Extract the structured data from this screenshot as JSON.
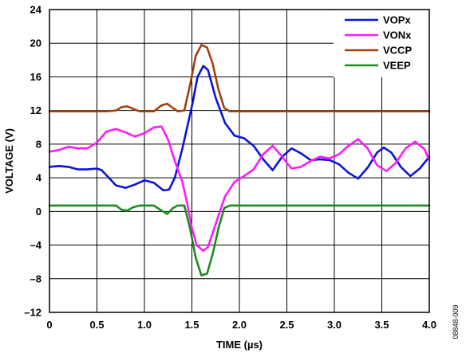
{
  "chart_data": {
    "type": "line",
    "xlabel": "TIME (µs)",
    "ylabel": "VOLTAGE (V)",
    "xlim": [
      0,
      4.0
    ],
    "ylim": [
      -12,
      24
    ],
    "xticks": [
      "0",
      "0.5",
      "1.0",
      "1.5",
      "2.0",
      "2.5",
      "3.0",
      "3.5",
      "4.0"
    ],
    "xtick_values": [
      0,
      0.5,
      1.0,
      1.5,
      2.0,
      2.5,
      3.0,
      3.5,
      4.0
    ],
    "yticks": [
      "–12",
      "–8",
      "–4",
      "0",
      "4",
      "8",
      "12",
      "16",
      "20",
      "24"
    ],
    "ytick_values": [
      -12,
      -8,
      -4,
      0,
      4,
      8,
      12,
      16,
      20,
      24
    ],
    "grid": true,
    "legend_position": "top-right",
    "series": [
      {
        "name": "VOPx",
        "color": "#0a14d6",
        "points": [
          [
            0,
            5.3
          ],
          [
            0.1,
            5.4
          ],
          [
            0.2,
            5.3
          ],
          [
            0.3,
            5.0
          ],
          [
            0.4,
            5.0
          ],
          [
            0.5,
            5.1
          ],
          [
            0.55,
            4.9
          ],
          [
            0.6,
            4.3
          ],
          [
            0.7,
            3.1
          ],
          [
            0.8,
            2.8
          ],
          [
            0.9,
            3.2
          ],
          [
            1.0,
            3.7
          ],
          [
            1.1,
            3.4
          ],
          [
            1.2,
            2.5
          ],
          [
            1.26,
            2.6
          ],
          [
            1.32,
            4.0
          ],
          [
            1.4,
            7.5
          ],
          [
            1.5,
            12.5
          ],
          [
            1.56,
            16.0
          ],
          [
            1.62,
            17.3
          ],
          [
            1.67,
            16.8
          ],
          [
            1.75,
            13.5
          ],
          [
            1.85,
            10.5
          ],
          [
            1.95,
            9.0
          ],
          [
            2.05,
            8.7
          ],
          [
            2.15,
            7.8
          ],
          [
            2.25,
            6.2
          ],
          [
            2.35,
            4.9
          ],
          [
            2.45,
            6.5
          ],
          [
            2.55,
            7.5
          ],
          [
            2.65,
            6.9
          ],
          [
            2.75,
            6.1
          ],
          [
            2.85,
            6.2
          ],
          [
            2.95,
            6.1
          ],
          [
            3.05,
            5.6
          ],
          [
            3.15,
            4.6
          ],
          [
            3.25,
            3.9
          ],
          [
            3.35,
            5.2
          ],
          [
            3.45,
            7.0
          ],
          [
            3.52,
            7.6
          ],
          [
            3.6,
            7.0
          ],
          [
            3.7,
            5.3
          ],
          [
            3.8,
            4.2
          ],
          [
            3.9,
            5.1
          ],
          [
            4.0,
            6.5
          ]
        ]
      },
      {
        "name": "VONx",
        "color": "#ff19ff",
        "points": [
          [
            0,
            7.1
          ],
          [
            0.1,
            7.3
          ],
          [
            0.2,
            7.7
          ],
          [
            0.3,
            7.5
          ],
          [
            0.4,
            7.5
          ],
          [
            0.5,
            8.2
          ],
          [
            0.6,
            9.5
          ],
          [
            0.7,
            9.8
          ],
          [
            0.8,
            9.4
          ],
          [
            0.9,
            8.9
          ],
          [
            1.0,
            9.3
          ],
          [
            1.1,
            10.0
          ],
          [
            1.18,
            10.1
          ],
          [
            1.25,
            8.5
          ],
          [
            1.32,
            6.0
          ],
          [
            1.4,
            3.5
          ],
          [
            1.45,
            1.0
          ],
          [
            1.5,
            -2.0
          ],
          [
            1.55,
            -4.0
          ],
          [
            1.62,
            -4.7
          ],
          [
            1.67,
            -4.2
          ],
          [
            1.75,
            -1.5
          ],
          [
            1.85,
            1.8
          ],
          [
            1.95,
            3.5
          ],
          [
            2.05,
            4.2
          ],
          [
            2.15,
            5.0
          ],
          [
            2.25,
            6.8
          ],
          [
            2.35,
            7.8
          ],
          [
            2.45,
            6.5
          ],
          [
            2.55,
            5.1
          ],
          [
            2.65,
            5.3
          ],
          [
            2.75,
            6.0
          ],
          [
            2.85,
            6.5
          ],
          [
            2.95,
            6.3
          ],
          [
            3.05,
            6.8
          ],
          [
            3.15,
            7.8
          ],
          [
            3.25,
            8.6
          ],
          [
            3.35,
            7.5
          ],
          [
            3.45,
            5.5
          ],
          [
            3.55,
            4.8
          ],
          [
            3.65,
            5.8
          ],
          [
            3.75,
            7.5
          ],
          [
            3.85,
            8.3
          ],
          [
            3.95,
            7.4
          ],
          [
            4.0,
            6.1
          ]
        ]
      },
      {
        "name": "VCCP",
        "color": "#a0410f",
        "points": [
          [
            0,
            11.9
          ],
          [
            0.2,
            11.9
          ],
          [
            0.4,
            11.9
          ],
          [
            0.6,
            11.9
          ],
          [
            0.7,
            12.0
          ],
          [
            0.76,
            12.4
          ],
          [
            0.82,
            12.5
          ],
          [
            0.88,
            12.2
          ],
          [
            0.95,
            11.9
          ],
          [
            1.1,
            11.9
          ],
          [
            1.18,
            12.6
          ],
          [
            1.24,
            12.8
          ],
          [
            1.3,
            12.3
          ],
          [
            1.35,
            11.9
          ],
          [
            1.42,
            12.0
          ],
          [
            1.48,
            15.0
          ],
          [
            1.54,
            18.5
          ],
          [
            1.6,
            19.8
          ],
          [
            1.66,
            19.5
          ],
          [
            1.72,
            17.5
          ],
          [
            1.78,
            14.5
          ],
          [
            1.84,
            12.3
          ],
          [
            1.9,
            11.9
          ],
          [
            2.0,
            11.9
          ],
          [
            2.5,
            11.9
          ],
          [
            3.0,
            11.9
          ],
          [
            3.5,
            11.9
          ],
          [
            4.0,
            11.9
          ]
        ]
      },
      {
        "name": "VEEP",
        "color": "#1f8a1f",
        "points": [
          [
            0,
            0.7
          ],
          [
            0.2,
            0.7
          ],
          [
            0.4,
            0.7
          ],
          [
            0.6,
            0.7
          ],
          [
            0.7,
            0.7
          ],
          [
            0.76,
            0.2
          ],
          [
            0.82,
            0.1
          ],
          [
            0.88,
            0.5
          ],
          [
            0.95,
            0.7
          ],
          [
            1.1,
            0.7
          ],
          [
            1.18,
            0.1
          ],
          [
            1.24,
            -0.3
          ],
          [
            1.3,
            0.4
          ],
          [
            1.35,
            0.7
          ],
          [
            1.42,
            0.7
          ],
          [
            1.48,
            -2.0
          ],
          [
            1.54,
            -5.5
          ],
          [
            1.6,
            -7.6
          ],
          [
            1.66,
            -7.4
          ],
          [
            1.72,
            -5.0
          ],
          [
            1.78,
            -2.0
          ],
          [
            1.84,
            0.4
          ],
          [
            1.9,
            0.7
          ],
          [
            2.0,
            0.7
          ],
          [
            2.5,
            0.7
          ],
          [
            3.0,
            0.7
          ],
          [
            3.5,
            0.7
          ],
          [
            4.0,
            0.7
          ]
        ]
      }
    ]
  },
  "figure_code": "08848-009"
}
